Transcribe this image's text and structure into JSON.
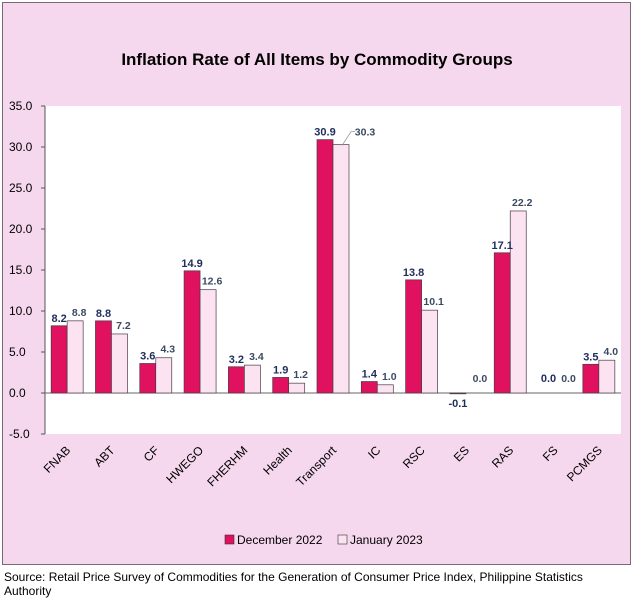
{
  "source": "Source: Retail Price Survey of Commodities for the Generation of Consumer Price Index, Philippine Statistics Authority",
  "colors": {
    "background": "#f6d8ee",
    "plot_area": "#ffffff",
    "dec_fill": "#e0115f",
    "jan_fill": "#fbe3f1",
    "dec_label": "#1f2d5c",
    "jan_label": "#3b4a63"
  },
  "chart_data": {
    "type": "bar",
    "title": "Inflation Rate of All Items by Commodity Groups",
    "xlabel": "",
    "ylabel": "",
    "ylim": [
      -5,
      35
    ],
    "yticks": [
      "-5.0",
      "0.0",
      "5.0",
      "10.0",
      "15.0",
      "20.0",
      "25.0",
      "30.0",
      "35.0"
    ],
    "grid": false,
    "legend_position": "bottom",
    "categories": [
      "FNAB",
      "ABT",
      "CF",
      "HWEGO",
      "FHERHM",
      "Health",
      "Transport",
      "IC",
      "RSC",
      "ES",
      "RAS",
      "FS",
      "PCMGS"
    ],
    "series": [
      {
        "name": "December 2022",
        "values": [
          8.2,
          8.8,
          3.6,
          14.9,
          3.2,
          1.9,
          30.9,
          1.4,
          13.8,
          -0.1,
          17.1,
          0.0,
          3.5
        ],
        "labels": [
          "8.2",
          "8.8",
          "3.6",
          "14.9",
          "3.2",
          "1.9",
          "30.9",
          "1.4",
          "13.8",
          "-0.1",
          "17.1",
          "0.0",
          "3.5"
        ]
      },
      {
        "name": "January 2023",
        "values": [
          8.8,
          7.2,
          4.3,
          12.6,
          3.4,
          1.2,
          30.3,
          1.0,
          10.1,
          0.0,
          22.2,
          0.0,
          4.0
        ],
        "labels": [
          "8.8",
          "7.2",
          "4.3",
          "12.6",
          "3.4",
          "1.2",
          "30.3",
          "1.0",
          "10.1",
          "0.0",
          "22.2",
          "0.0",
          "4.0"
        ]
      }
    ]
  }
}
